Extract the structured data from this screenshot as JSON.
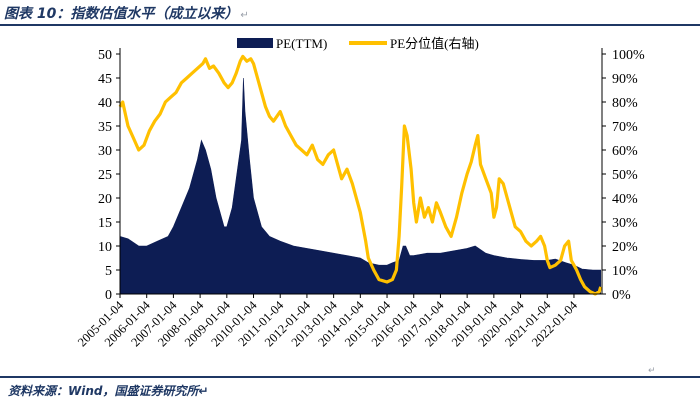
{
  "caption": {
    "title": "图表 10：指数估值水平（成立以来）",
    "return_mark": "↵"
  },
  "source": "资料来源：Wind，国盛证券研究所",
  "marks": {
    "right_return": "↵",
    "left_return": "↵"
  },
  "colors": {
    "pe": "#0d1d54",
    "percentile": "#ffc000",
    "accent": "#1f3864"
  },
  "chart_data": {
    "type": "area+line",
    "title": "",
    "x": [
      "2005-01-04",
      "2006-01-04",
      "2007-01-04",
      "2008-01-04",
      "2009-01-04",
      "2010-01-04",
      "2011-01-04",
      "2012-01-04",
      "2013-01-04",
      "2014-01-04",
      "2015-01-04",
      "2016-01-04",
      "2017-01-04",
      "2018-01-04",
      "2019-01-04",
      "2020-01-04",
      "2021-01-04",
      "2022-01-04"
    ],
    "x_range": [
      2005.0,
      2023.05
    ],
    "legend": [
      "PE(TTM)",
      "PE分位值(右轴)"
    ],
    "y_left": {
      "min": 0,
      "max": 50,
      "ticks": [
        "0",
        "5",
        "10",
        "15",
        "20",
        "25",
        "30",
        "35",
        "40",
        "45",
        "50"
      ]
    },
    "y_right": {
      "min": 0,
      "max": 100,
      "ticks": [
        "0%",
        "10%",
        "20%",
        "30%",
        "40%",
        "50%",
        "60%",
        "70%",
        "80%",
        "90%",
        "100%"
      ]
    },
    "series": [
      {
        "name": "PE(TTM)",
        "axis": "left",
        "style": "area",
        "points": [
          [
            2005.0,
            12
          ],
          [
            2005.3,
            11.5
          ],
          [
            2005.7,
            10
          ],
          [
            2006.0,
            10
          ],
          [
            2006.4,
            11
          ],
          [
            2006.8,
            12
          ],
          [
            2007.0,
            14
          ],
          [
            2007.3,
            18
          ],
          [
            2007.6,
            22
          ],
          [
            2007.9,
            28
          ],
          [
            2008.05,
            32
          ],
          [
            2008.2,
            30
          ],
          [
            2008.4,
            26
          ],
          [
            2008.6,
            20
          ],
          [
            2008.9,
            14
          ],
          [
            2009.0,
            14
          ],
          [
            2009.2,
            18
          ],
          [
            2009.4,
            26
          ],
          [
            2009.55,
            32
          ],
          [
            2009.62,
            45
          ],
          [
            2009.68,
            38
          ],
          [
            2009.85,
            28
          ],
          [
            2010.0,
            20
          ],
          [
            2010.3,
            14
          ],
          [
            2010.6,
            12
          ],
          [
            2011.0,
            11
          ],
          [
            2011.5,
            10
          ],
          [
            2012.0,
            9.5
          ],
          [
            2012.5,
            9
          ],
          [
            2013.0,
            8.5
          ],
          [
            2013.5,
            8
          ],
          [
            2014.0,
            7.5
          ],
          [
            2014.3,
            6.5
          ],
          [
            2014.7,
            6
          ],
          [
            2015.0,
            6
          ],
          [
            2015.2,
            6.5
          ],
          [
            2015.45,
            7
          ],
          [
            2015.6,
            10
          ],
          [
            2015.7,
            10
          ],
          [
            2015.85,
            8
          ],
          [
            2016.0,
            8
          ],
          [
            2016.5,
            8.5
          ],
          [
            2017.0,
            8.5
          ],
          [
            2017.5,
            9
          ],
          [
            2018.0,
            9.5
          ],
          [
            2018.3,
            10
          ],
          [
            2018.7,
            8.5
          ],
          [
            2019.0,
            8
          ],
          [
            2019.5,
            7.5
          ],
          [
            2020.0,
            7.2
          ],
          [
            2020.5,
            7
          ],
          [
            2021.0,
            7
          ],
          [
            2021.3,
            7.3
          ],
          [
            2021.7,
            6.5
          ],
          [
            2022.0,
            6
          ],
          [
            2022.3,
            5.2
          ],
          [
            2022.7,
            5
          ],
          [
            2023.0,
            5
          ]
        ]
      },
      {
        "name": "PE分位值(右轴)",
        "axis": "right",
        "style": "line",
        "points": [
          [
            2005.0,
            78
          ],
          [
            2005.1,
            80
          ],
          [
            2005.3,
            70
          ],
          [
            2005.5,
            65
          ],
          [
            2005.7,
            60
          ],
          [
            2005.9,
            62
          ],
          [
            2006.1,
            68
          ],
          [
            2006.3,
            72
          ],
          [
            2006.5,
            75
          ],
          [
            2006.7,
            80
          ],
          [
            2006.9,
            82
          ],
          [
            2007.1,
            84
          ],
          [
            2007.3,
            88
          ],
          [
            2007.5,
            90
          ],
          [
            2007.7,
            92
          ],
          [
            2007.9,
            94
          ],
          [
            2008.1,
            96
          ],
          [
            2008.2,
            98
          ],
          [
            2008.35,
            94
          ],
          [
            2008.5,
            95
          ],
          [
            2008.7,
            92
          ],
          [
            2008.9,
            88
          ],
          [
            2009.05,
            86
          ],
          [
            2009.2,
            88
          ],
          [
            2009.35,
            92
          ],
          [
            2009.5,
            97
          ],
          [
            2009.6,
            99
          ],
          [
            2009.75,
            97
          ],
          [
            2009.9,
            98
          ],
          [
            2010.0,
            96
          ],
          [
            2010.15,
            90
          ],
          [
            2010.3,
            84
          ],
          [
            2010.45,
            78
          ],
          [
            2010.6,
            74
          ],
          [
            2010.75,
            72
          ],
          [
            2011.0,
            76
          ],
          [
            2011.2,
            70
          ],
          [
            2011.4,
            66
          ],
          [
            2011.6,
            62
          ],
          [
            2011.8,
            60
          ],
          [
            2012.0,
            58
          ],
          [
            2012.2,
            62
          ],
          [
            2012.4,
            56
          ],
          [
            2012.6,
            54
          ],
          [
            2012.8,
            58
          ],
          [
            2013.0,
            60
          ],
          [
            2013.15,
            54
          ],
          [
            2013.3,
            48
          ],
          [
            2013.5,
            52
          ],
          [
            2013.7,
            46
          ],
          [
            2013.85,
            40
          ],
          [
            2014.0,
            34
          ],
          [
            2014.1,
            28
          ],
          [
            2014.2,
            22
          ],
          [
            2014.3,
            15
          ],
          [
            2014.5,
            10
          ],
          [
            2014.7,
            6
          ],
          [
            2015.0,
            5
          ],
          [
            2015.2,
            6
          ],
          [
            2015.35,
            10
          ],
          [
            2015.45,
            24
          ],
          [
            2015.55,
            45
          ],
          [
            2015.65,
            70
          ],
          [
            2015.75,
            66
          ],
          [
            2015.9,
            52
          ],
          [
            2016.0,
            38
          ],
          [
            2016.1,
            30
          ],
          [
            2016.25,
            40
          ],
          [
            2016.4,
            32
          ],
          [
            2016.55,
            36
          ],
          [
            2016.7,
            30
          ],
          [
            2016.85,
            38
          ],
          [
            2017.0,
            34
          ],
          [
            2017.2,
            28
          ],
          [
            2017.4,
            24
          ],
          [
            2017.6,
            32
          ],
          [
            2017.8,
            42
          ],
          [
            2018.0,
            50
          ],
          [
            2018.15,
            55
          ],
          [
            2018.3,
            62
          ],
          [
            2018.4,
            66
          ],
          [
            2018.5,
            54
          ],
          [
            2018.7,
            48
          ],
          [
            2018.9,
            42
          ],
          [
            2019.0,
            32
          ],
          [
            2019.1,
            36
          ],
          [
            2019.2,
            48
          ],
          [
            2019.35,
            46
          ],
          [
            2019.5,
            40
          ],
          [
            2019.65,
            34
          ],
          [
            2019.8,
            28
          ],
          [
            2020.0,
            26
          ],
          [
            2020.2,
            22
          ],
          [
            2020.4,
            20
          ],
          [
            2020.6,
            22
          ],
          [
            2020.75,
            24
          ],
          [
            2020.9,
            20
          ],
          [
            2021.0,
            14
          ],
          [
            2021.1,
            11
          ],
          [
            2021.3,
            12
          ],
          [
            2021.5,
            14
          ],
          [
            2021.65,
            20
          ],
          [
            2021.8,
            22
          ],
          [
            2021.9,
            14
          ],
          [
            2022.0,
            12
          ],
          [
            2022.1,
            10
          ],
          [
            2022.25,
            6
          ],
          [
            2022.4,
            3
          ],
          [
            2022.6,
            1
          ],
          [
            2022.8,
            0
          ],
          [
            2022.95,
            1
          ],
          [
            2023.0,
            3
          ]
        ]
      }
    ]
  }
}
